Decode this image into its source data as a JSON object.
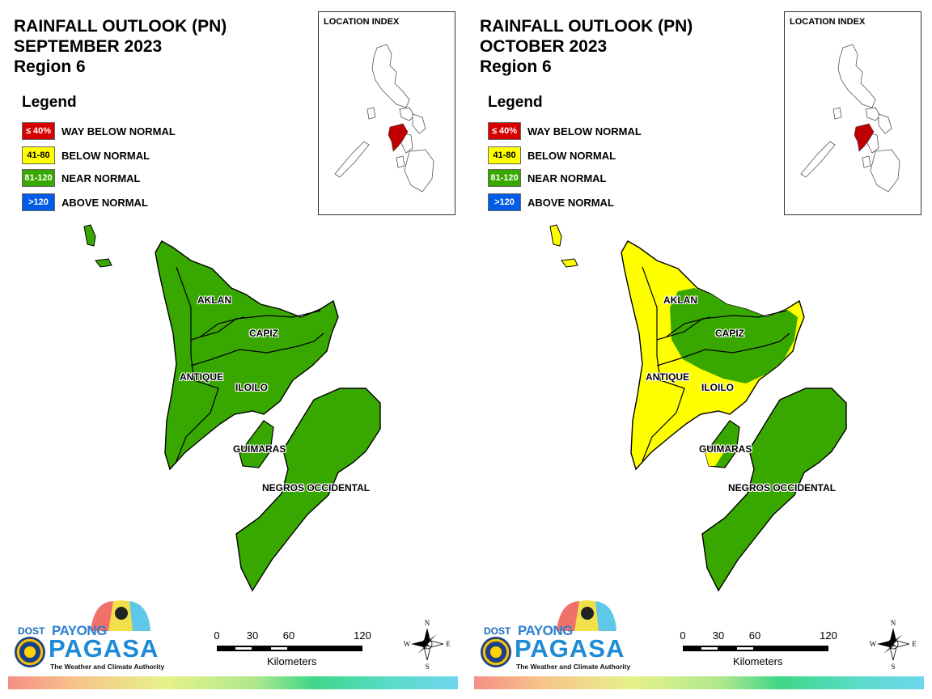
{
  "colors": {
    "way_below": "#d70000",
    "below": "#ffff00",
    "near": "#38a800",
    "above": "#005ce6",
    "region_highlight": "#c00000"
  },
  "legend": {
    "title": "Legend",
    "items": [
      {
        "swatch": "≤ 40%",
        "label": "WAY BELOW NORMAL"
      },
      {
        "swatch": "41-80",
        "label": "BELOW NORMAL"
      },
      {
        "swatch": "81-120",
        "label": "NEAR NORMAL"
      },
      {
        "swatch": ">120",
        "label": "ABOVE NORMAL"
      }
    ]
  },
  "index_title": "LOCATION INDEX",
  "scale": {
    "ticks": [
      "0",
      "30",
      "60",
      "120"
    ],
    "units": "Kilometers"
  },
  "compass": {
    "n": "N",
    "s": "S",
    "e": "E",
    "w": "W"
  },
  "logo": {
    "dost": "DOST",
    "payong": "PAYONG",
    "pagasa": "PAGASA",
    "tagline": "The Weather and Climate Authority"
  },
  "panels": [
    {
      "title": [
        "RAINFALL OUTLOOK (PN)",
        "SEPTEMBER 2023",
        "Region 6"
      ],
      "provinces": [
        {
          "name": "AKLAN",
          "category": "near"
        },
        {
          "name": "CAPIZ",
          "category": "near"
        },
        {
          "name": "ANTIQUE",
          "category": "near"
        },
        {
          "name": "ILOILO",
          "category": "near"
        },
        {
          "name": "GUIMARAS",
          "category": "near"
        },
        {
          "name": "NEGROS OCCIDENTAL",
          "category": "near"
        }
      ]
    },
    {
      "title": [
        "RAINFALL OUTLOOK (PN)",
        "OCTOBER 2023",
        "Region 6"
      ],
      "provinces": [
        {
          "name": "AKLAN",
          "category": "near"
        },
        {
          "name": "CAPIZ",
          "category": "near"
        },
        {
          "name": "ANTIQUE",
          "category": "below"
        },
        {
          "name": "ILOILO",
          "category": "below"
        },
        {
          "name": "GUIMARAS",
          "category": "near"
        },
        {
          "name": "NEGROS OCCIDENTAL",
          "category": "near"
        }
      ]
    }
  ]
}
